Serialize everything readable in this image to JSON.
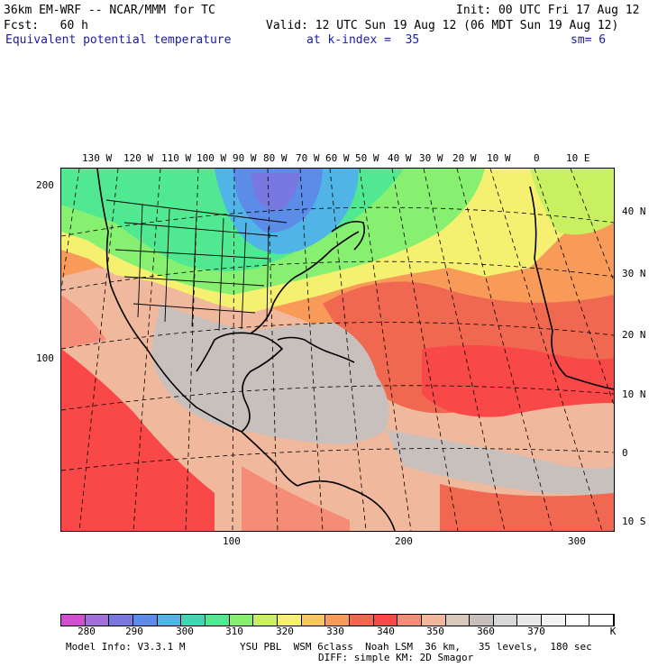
{
  "header": {
    "model_title": "36km EM-WRF -- NCAR/MMM for TC",
    "init_time": "Init: 00 UTC Fri 17 Aug 12",
    "forecast_hour": "Fcst:   60 h",
    "valid_time": "Valid: 12 UTC Sun 19 Aug 12 (06 MDT Sun 19 Aug 12)",
    "field_name": "Equivalent potential temperature",
    "level": "at k-index =  35",
    "smoothing": "sm= 6"
  },
  "map": {
    "longitude_labels": [
      "130 W",
      "120 W",
      "110 W",
      "100 W",
      "90 W",
      "80 W",
      "70 W",
      "60 W",
      "50 W",
      "40 W",
      "30 W",
      "20 W",
      "10 W",
      "0",
      "10 E"
    ],
    "latitude_labels": [
      "40 N",
      "30 N",
      "20 N",
      "10 N",
      "0",
      "10 S"
    ],
    "grid_x_labels": [
      "100",
      "200",
      "300"
    ],
    "grid_y_labels": [
      "200",
      "100"
    ]
  },
  "colorbar": {
    "labels": [
      "280",
      "290",
      "300",
      "310",
      "320",
      "330",
      "340",
      "350",
      "360",
      "370"
    ],
    "units": "K",
    "colors": [
      "#d050d0",
      "#a070d8",
      "#7878e0",
      "#5a8ce8",
      "#50b4e6",
      "#40d8b4",
      "#50e890",
      "#88f070",
      "#c8f060",
      "#f6f070",
      "#f8c860",
      "#f89a58",
      "#f06850",
      "#f84848",
      "#f48c78",
      "#f0b89c",
      "#d8c8bc",
      "#c8c0bc",
      "#d8d8d8",
      "#e8e8e8",
      "#f4f4f4",
      "#ffffff",
      "#ffffff"
    ]
  },
  "footer": {
    "model_info": "Model Info: V3.3.1 M",
    "physics": "YSU PBL  WSM 6class  Noah LSM  36 km,   35 levels,  180 sec",
    "diffusion": "DIFF: simple KM: 2D Smagor"
  }
}
